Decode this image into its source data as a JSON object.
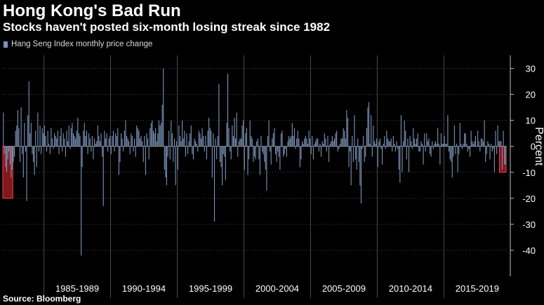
{
  "header": {
    "title": "Hong Kong's Bad Run",
    "subtitle": "Stocks haven't posted six-month losing streak since 1982"
  },
  "footer": {
    "source": "Source: Bloomberg"
  },
  "colors": {
    "background": "#000000",
    "bar": "#7a93b8",
    "highlight_fill": "#9b1b22",
    "highlight_stroke": "#e8424c",
    "grid": "#4a4a4a",
    "text": "#ffffff"
  },
  "chart_data": {
    "type": "bar",
    "title": "Hong Kong's Bad Run",
    "subtitle": "Stocks haven't posted six-month losing streak since 1982",
    "ylabel": "Percent",
    "ylim": [
      -50,
      35
    ],
    "yticks": [
      30,
      20,
      10,
      0,
      -10,
      -20,
      -30,
      -40
    ],
    "x_range": [
      "1981-12",
      "2019-08"
    ],
    "grid": true,
    "legend_position": "top-left",
    "series": [
      {
        "name": "Hang Seng Index monthly price change",
        "values_by_year": {
          "1982": [
            -3,
            -8,
            -10,
            -5,
            -2,
            -7,
            -12,
            -9,
            -6,
            -4,
            6,
            8
          ],
          "1983": [
            14,
            7,
            -6,
            15,
            -3,
            -12,
            9,
            -2,
            -21,
            12,
            25,
            5
          ],
          "1984": [
            9,
            -3,
            -6,
            -11,
            6,
            -8,
            13,
            -2,
            8,
            -3,
            7,
            5
          ],
          "1985": [
            8,
            4,
            -2,
            6,
            1,
            -3,
            7,
            3,
            -1,
            5,
            4,
            3
          ],
          "1986": [
            6,
            -3,
            4,
            7,
            -2,
            5,
            3,
            -4,
            6,
            2,
            8,
            -1
          ],
          "1987": [
            7,
            9,
            5,
            4,
            3,
            6,
            11,
            5,
            4,
            -42,
            -8,
            6
          ],
          "1988": [
            9,
            4,
            6,
            -3,
            5,
            3,
            -2,
            4,
            -5,
            3,
            1,
            2
          ],
          "1989": [
            8,
            4,
            2,
            5,
            -4,
            -23,
            6,
            3,
            5,
            -2,
            3,
            4
          ],
          "1990": [
            -3,
            4,
            6,
            -2,
            5,
            4,
            7,
            -11,
            -6,
            5,
            3,
            -2
          ],
          "1991": [
            6,
            10,
            4,
            3,
            2,
            -3,
            5,
            4,
            -2,
            3,
            -4,
            8
          ],
          "1992": [
            7,
            6,
            3,
            4,
            2,
            -6,
            4,
            -11,
            5,
            3,
            -5,
            7
          ],
          "1993": [
            9,
            10,
            6,
            5,
            7,
            2,
            5,
            10,
            8,
            9,
            16,
            30
          ],
          "1994": [
            -9,
            -12,
            -15,
            -4,
            6,
            -5,
            10,
            5,
            -6,
            3,
            -15,
            2
          ],
          "1995": [
            -9,
            8,
            4,
            2,
            10,
            3,
            6,
            -4,
            5,
            -3,
            2,
            5
          ],
          "1996": [
            8,
            -3,
            -5,
            3,
            2,
            1,
            -2,
            6,
            5,
            3,
            7,
            4
          ],
          "1997": [
            -2,
            4,
            -5,
            6,
            11,
            7,
            6,
            -12,
            5,
            -29,
            3,
            -5
          ],
          "1998": [
            4,
            24,
            -6,
            -8,
            -15,
            -3,
            -4,
            -13,
            9,
            28,
            7,
            -2
          ],
          "1999": [
            -5,
            8,
            4,
            11,
            3,
            13,
            -4,
            2,
            3,
            3,
            8,
            10
          ],
          "2000": [
            -9,
            5,
            7,
            -11,
            -5,
            10,
            4,
            3,
            -6,
            -4,
            -5,
            2
          ],
          "2001": [
            3,
            -5,
            -11,
            4,
            -2,
            -3,
            -6,
            -9,
            -17,
            4,
            10,
            -2
          ],
          "2002": [
            -7,
            3,
            5,
            7,
            -3,
            -6,
            -2,
            -4,
            -9,
            5,
            6,
            -4
          ],
          "2003": [
            -3,
            -1,
            -4,
            2,
            4,
            3,
            4,
            9,
            4,
            7,
            -1,
            3
          ],
          "2004": [
            6,
            3,
            -8,
            -5,
            2,
            1,
            3,
            4,
            3,
            1,
            6,
            3
          ],
          "2005": [
            -3,
            4,
            -5,
            1,
            2,
            3,
            3,
            -2,
            1,
            -4,
            2,
            1
          ],
          "2006": [
            5,
            3,
            -2,
            4,
            -6,
            1,
            2,
            4,
            2,
            3,
            5,
            6
          ],
          "2007": [
            -2,
            -1,
            1,
            3,
            3,
            7,
            6,
            3,
            14,
            11,
            -8,
            -2
          ],
          "2008": [
            -15,
            4,
            -6,
            12,
            -5,
            -9,
            3,
            -6,
            -15,
            -22,
            -1,
            4
          ],
          "2009": [
            -6,
            -4,
            7,
            15,
            17,
            1,
            12,
            -4,
            8,
            2,
            1,
            3
          ],
          "2010": [
            -8,
            2,
            3,
            -1,
            -7,
            1,
            4,
            -1,
            6,
            3,
            2,
            2
          ],
          "2011": [
            3,
            -2,
            4,
            1,
            -2,
            2,
            -1,
            -9,
            -14,
            12,
            -10,
            2
          ],
          "2012": [
            10,
            6,
            -5,
            3,
            -10,
            4,
            2,
            -1,
            7,
            3,
            1,
            3
          ],
          "2013": [
            5,
            -2,
            -2,
            2,
            1,
            -7,
            5,
            -2,
            5,
            2,
            3,
            -3
          ],
          "2014": [
            -4,
            2,
            -1,
            1,
            2,
            1,
            7,
            1,
            -7,
            5,
            1,
            1
          ],
          "2015": [
            4,
            1,
            1,
            12,
            -2,
            -5,
            -6,
            -12,
            -4,
            8,
            -3,
            1
          ],
          "2016": [
            -10,
            -3,
            9,
            1,
            -1,
            1,
            5,
            5,
            1,
            -2,
            -1,
            -4
          ],
          "2017": [
            6,
            2,
            1,
            2,
            4,
            0,
            6,
            2,
            -2,
            3,
            3,
            2
          ],
          "2018": [
            10,
            -6,
            -3,
            2,
            1,
            -5,
            1,
            -2,
            -1,
            -10,
            6,
            -3
          ],
          "2019": [
            8,
            2,
            2,
            2,
            -9,
            6,
            -7,
            -7
          ]
        }
      }
    ],
    "highlights": [
      {
        "from": "1981-12",
        "to": "1982-08",
        "low": -20,
        "high": 0
      },
      {
        "from": "2019-03",
        "to": "2019-08",
        "low": -10,
        "high": 0
      }
    ],
    "x_labels": [
      "1985-1989",
      "1990-1994",
      "1995-1999",
      "2000-2004",
      "2005-2009",
      "2010-2014",
      "2015-2019"
    ],
    "x_label_ranges": [
      [
        1985,
        1989
      ],
      [
        1990,
        1994
      ],
      [
        1995,
        1999
      ],
      [
        2000,
        2004
      ],
      [
        2005,
        2009
      ],
      [
        2010,
        2014
      ],
      [
        2015,
        2019
      ]
    ]
  }
}
